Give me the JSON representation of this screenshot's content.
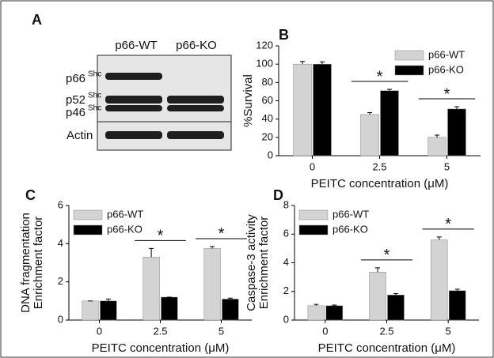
{
  "blot": {
    "panel_label": "A",
    "lanes": [
      "p66-WT",
      "p66-KO"
    ],
    "rows": [
      {
        "label": "p66",
        "sup": "Shc"
      },
      {
        "label": "p52",
        "sup": "Shc"
      },
      {
        "label": "p46",
        "sup": "Shc"
      },
      {
        "label": "Actin"
      }
    ]
  },
  "chart_data": [
    {
      "type": "bar",
      "panel_label": "B",
      "ylabel": [
        "%Survival"
      ],
      "xlabel": "PEITC concentration (μM)",
      "categories": [
        "0",
        "2.5",
        "5"
      ],
      "ylim": [
        0,
        120
      ],
      "yticks": [
        0,
        20,
        40,
        60,
        80,
        100,
        120
      ],
      "legend": "upper right",
      "series": [
        {
          "name": "p66-WT",
          "color": "#d3d3d3",
          "values": [
            100,
            45,
            20
          ],
          "errors": [
            3,
            2,
            2.5
          ]
        },
        {
          "name": "p66-KO",
          "color": "#000000",
          "values": [
            100,
            71,
            51
          ],
          "errors": [
            2.5,
            1.5,
            2.5
          ]
        }
      ],
      "annotations": [
        "*",
        "*"
      ]
    },
    {
      "type": "bar",
      "panel_label": "C",
      "ylabel": [
        "DNA fragmentation",
        "Enrichment factor"
      ],
      "xlabel": "PEITC concentration (μM)",
      "categories": [
        "0",
        "2.5",
        "5"
      ],
      "ylim": [
        0,
        6
      ],
      "yticks": [
        0,
        2,
        4,
        6
      ],
      "legend": "upper left",
      "series": [
        {
          "name": "p66-WT",
          "color": "#d3d3d3",
          "values": [
            1.0,
            3.3,
            3.75
          ],
          "errors": [
            0,
            0.45,
            0.1
          ]
        },
        {
          "name": "p66-KO",
          "color": "#000000",
          "values": [
            1.0,
            1.2,
            1.1
          ],
          "errors": [
            0.1,
            0,
            0.05
          ]
        }
      ],
      "annotations": [
        "*",
        "*"
      ]
    },
    {
      "type": "bar",
      "panel_label": "D",
      "ylabel": [
        "Caspase-3 activity",
        "Enrichment factor"
      ],
      "xlabel": "PEITC concentration (μM)",
      "categories": [
        "0",
        "2.5",
        "5"
      ],
      "ylim": [
        0,
        8
      ],
      "yticks": [
        0,
        2,
        4,
        6,
        8
      ],
      "legend": "upper left",
      "series": [
        {
          "name": "p66-WT",
          "color": "#d3d3d3",
          "values": [
            1.0,
            3.35,
            5.6
          ],
          "errors": [
            0.1,
            0.3,
            0.2
          ]
        },
        {
          "name": "p66-KO",
          "color": "#000000",
          "values": [
            1.0,
            1.75,
            2.05
          ],
          "errors": [
            0.05,
            0.1,
            0.1
          ]
        }
      ],
      "annotations": [
        "*",
        "*"
      ]
    }
  ]
}
